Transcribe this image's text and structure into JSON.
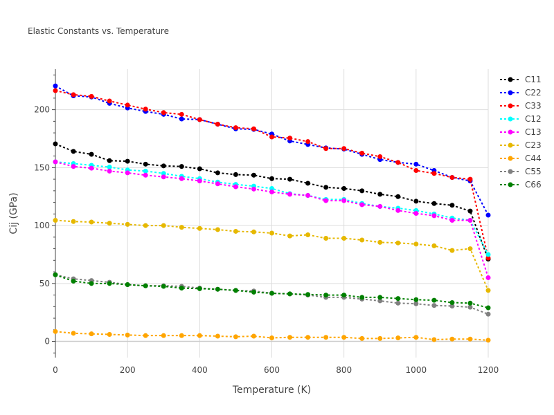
{
  "chart_data": {
    "type": "line",
    "title": "Elastic Constants vs. Temperature",
    "xlabel": "Temperature (K)",
    "ylabel": "Cij (GPa)",
    "xlim": [
      0,
      1200
    ],
    "ylim": [
      -14,
      235
    ],
    "xticks": [
      0,
      200,
      400,
      600,
      800,
      1000,
      1200
    ],
    "yticks": [
      0,
      50,
      100,
      150,
      200
    ],
    "grid": true,
    "legend_position": "top-right",
    "line_style": "dotted",
    "x": [
      0,
      50,
      100,
      150,
      200,
      250,
      300,
      350,
      400,
      450,
      500,
      550,
      600,
      650,
      700,
      750,
      800,
      850,
      900,
      950,
      1000,
      1050,
      1100,
      1150,
      1200
    ],
    "series": [
      {
        "name": "C11",
        "color": "#000000",
        "values": [
          170.5,
          164,
          161.5,
          156,
          155.5,
          153,
          151.5,
          151,
          149,
          145.5,
          144,
          143.5,
          140.5,
          140,
          136.5,
          133,
          132,
          130,
          127,
          125,
          121,
          119,
          117.5,
          112.5,
          71
        ]
      },
      {
        "name": "C22",
        "color": "#0000ff",
        "values": [
          220.5,
          212,
          211,
          205.5,
          201.5,
          198.5,
          196,
          192,
          191.5,
          187.5,
          183.5,
          183,
          179,
          173,
          170,
          167,
          166,
          161.5,
          157,
          154.5,
          153,
          147.5,
          141.5,
          138.5,
          109
        ]
      },
      {
        "name": "C33",
        "color": "#ff0000",
        "values": [
          216.5,
          213,
          211.5,
          207.5,
          204,
          200.5,
          197.5,
          196,
          191.5,
          187.5,
          184.5,
          183.5,
          176.5,
          175.5,
          172.5,
          166.5,
          166.5,
          162.5,
          159.5,
          154.5,
          147.5,
          145,
          141.5,
          140,
          72
        ]
      },
      {
        "name": "C12",
        "color": "#00ffff",
        "values": [
          155,
          153.5,
          152,
          150.5,
          148,
          147,
          145,
          142.5,
          140.5,
          137.5,
          135.5,
          134,
          132,
          127.5,
          126,
          122.5,
          122.5,
          119,
          116.5,
          115,
          113,
          110,
          106.5,
          104.5,
          75
        ]
      },
      {
        "name": "C13",
        "color": "#ff00ff",
        "values": [
          155,
          151,
          149.5,
          147,
          145.5,
          143.5,
          142,
          140.5,
          138.5,
          136,
          133.5,
          131.5,
          129,
          127,
          126,
          121.5,
          121.5,
          118,
          116.5,
          113,
          110.5,
          108.5,
          104.5,
          104.5,
          55
        ]
      },
      {
        "name": "C23",
        "color": "#e6b800",
        "values": [
          104.5,
          103.5,
          103,
          102,
          101,
          100,
          100,
          98.5,
          97.5,
          96.5,
          95,
          94.5,
          93.5,
          91,
          92,
          89,
          89,
          87.5,
          85.5,
          85,
          84,
          82.5,
          78.5,
          80,
          44
        ]
      },
      {
        "name": "C44",
        "color": "#ffa500",
        "values": [
          8.5,
          7,
          6.5,
          6,
          5.5,
          5,
          5,
          5,
          5,
          4.5,
          4,
          4.5,
          3,
          3.5,
          3.5,
          3.5,
          3.5,
          2.5,
          2.5,
          3,
          3.5,
          1.5,
          2,
          2,
          1
        ]
      },
      {
        "name": "C55",
        "color": "#808080",
        "values": [
          57.5,
          54,
          52.5,
          51,
          49,
          48,
          48,
          47.5,
          46,
          45,
          44,
          43.5,
          41.5,
          41,
          40,
          38,
          38,
          36.5,
          35,
          33,
          32.5,
          31,
          30.5,
          29.5,
          23.5
        ]
      },
      {
        "name": "C66",
        "color": "#008000",
        "values": [
          57.5,
          52,
          50,
          50,
          49,
          48,
          47.5,
          46,
          45.5,
          45,
          44,
          42.5,
          41.5,
          41,
          40.5,
          40,
          40,
          38,
          38,
          37,
          36,
          35.5,
          33.5,
          33,
          29
        ]
      }
    ]
  }
}
